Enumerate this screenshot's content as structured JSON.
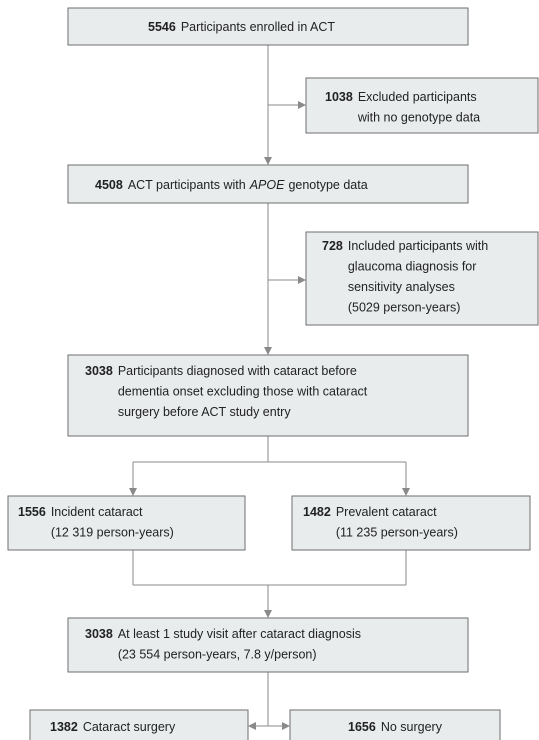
{
  "nodes": [
    {
      "count": "5546",
      "lines": [
        "Participants enrolled in ACT"
      ]
    },
    {
      "count": "1038",
      "lines": [
        "Excluded participants",
        "with no genotype data"
      ]
    },
    {
      "count": "4508",
      "text": "ACT participants with",
      "emphasis": "APOE",
      "text_end": "genotype data"
    },
    {
      "count": "728",
      "lines": [
        "Included participants with",
        "glaucoma diagnosis for",
        "sensitivity analyses",
        "(5029 person-years)"
      ]
    },
    {
      "count": "3038",
      "lines": [
        "Participants diagnosed with cataract before",
        "dementia onset excluding those with cataract",
        "surgery before ACT study entry"
      ]
    },
    {
      "count": "1556",
      "lines": [
        "Incident cataract",
        "(12 319 person-years)"
      ]
    },
    {
      "count": "1482",
      "lines": [
        "Prevalent cataract",
        "(11 235 person-years)"
      ]
    },
    {
      "count": "3038",
      "lines": [
        "At least 1 study visit after cataract diagnosis",
        "(23 554 person-years, 7.8 y/person)"
      ]
    },
    {
      "count": "1382",
      "lines": [
        "Cataract surgery"
      ]
    },
    {
      "count": "1656",
      "lines": [
        "No surgery"
      ]
    }
  ]
}
